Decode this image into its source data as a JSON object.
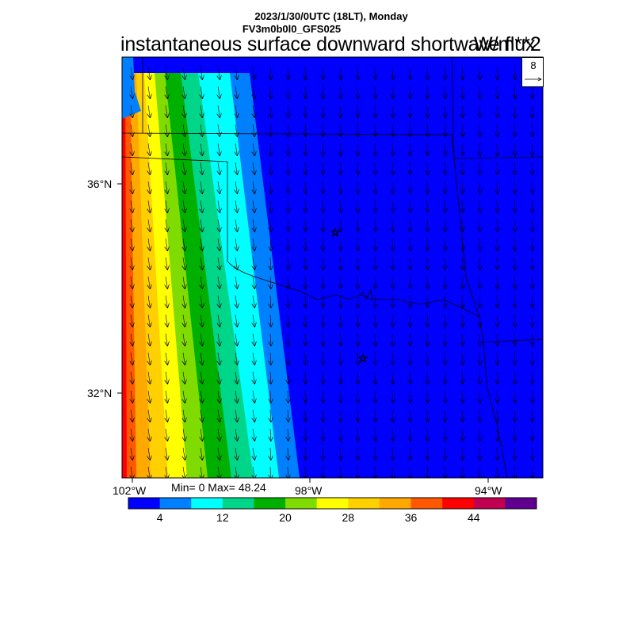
{
  "header": {
    "line1": "2023/1/30/0UTC (18LT), Monday",
    "line2": "FV3m0b0l0_GFS025",
    "title": "instantaneous surface downward shortwave flux",
    "units": "W/m**2"
  },
  "axes": {
    "lat_labels": [
      "36°N",
      "32°N"
    ],
    "lon_labels": [
      "102°W",
      "98°W",
      "94°W"
    ]
  },
  "stats": {
    "minmax": "Min= 0 Max= 48.24"
  },
  "reference_vector": {
    "value": "8"
  },
  "colorbar": {
    "colors": [
      "#0000ff",
      "#0080ff",
      "#00ffff",
      "#00d68a",
      "#00b000",
      "#80dc00",
      "#ffff00",
      "#ffd000",
      "#ffa800",
      "#ff5800",
      "#ff0000",
      "#c00050",
      "#600090"
    ],
    "labels": [
      "4",
      "12",
      "20",
      "28",
      "36",
      "44"
    ],
    "min": 0,
    "max": 52,
    "step": 4
  },
  "map": {
    "icon": "star-icon",
    "cities": [
      "star-marker-north",
      "star-marker-south"
    ]
  }
}
